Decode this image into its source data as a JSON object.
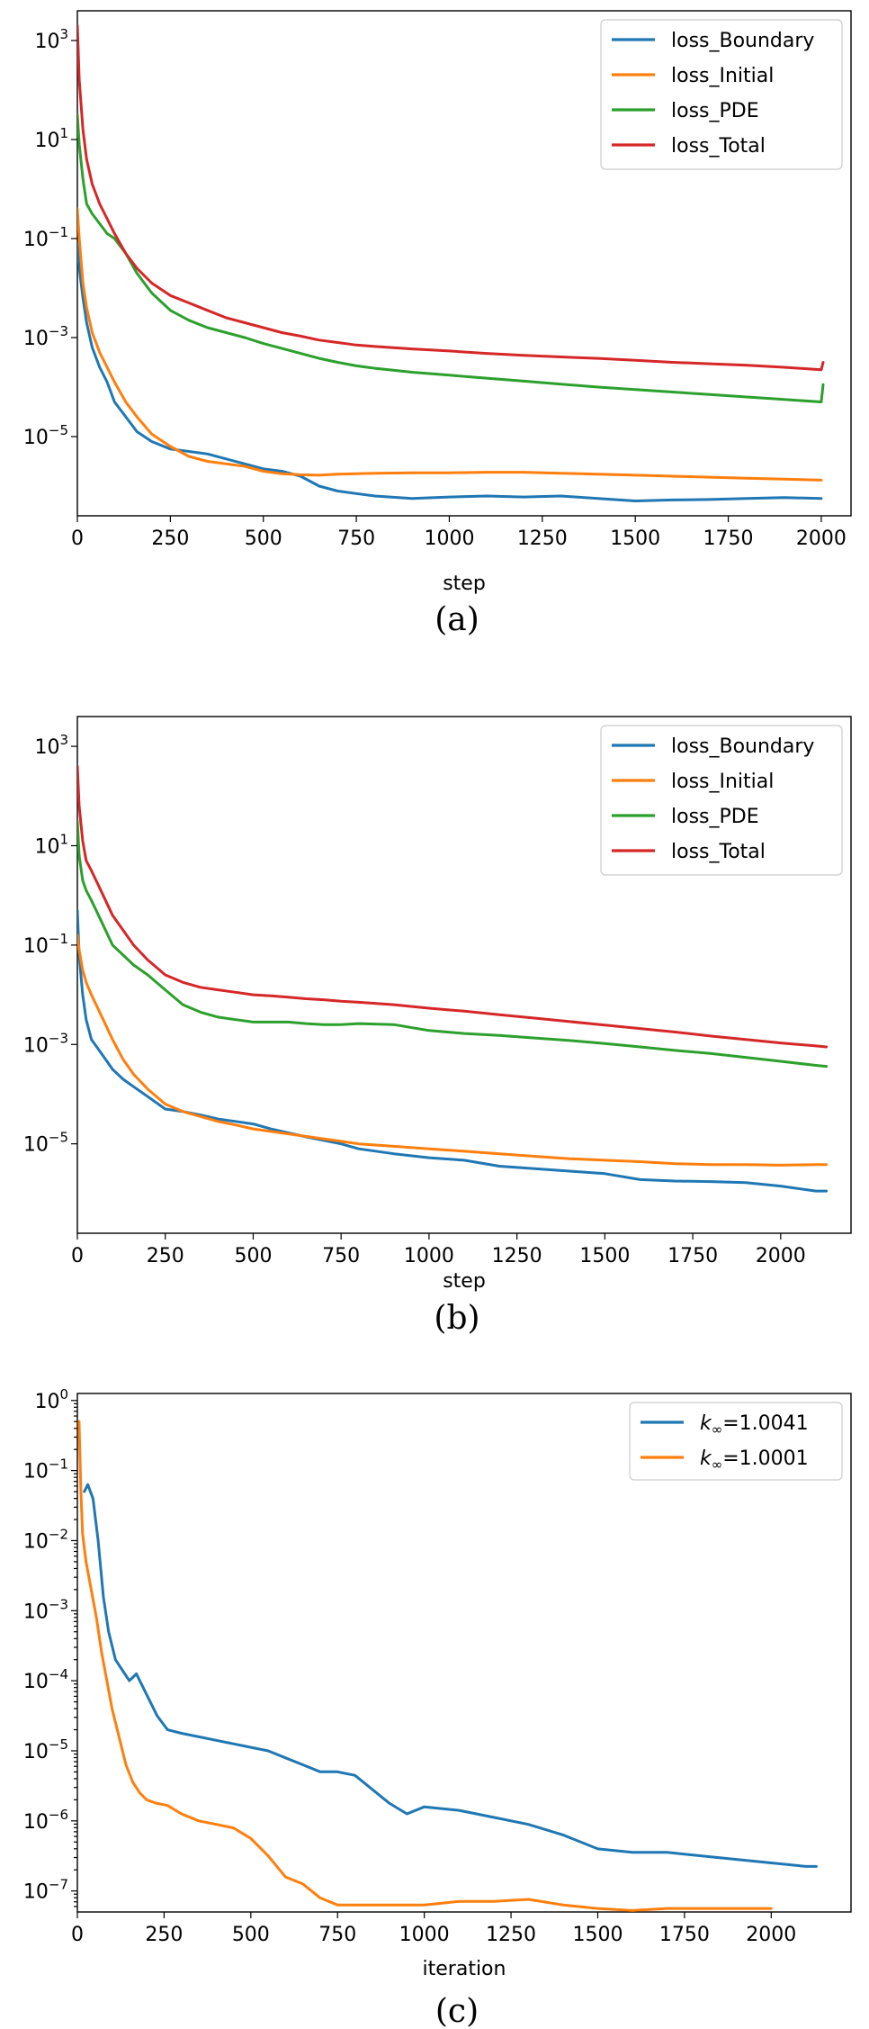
{
  "chart_data": [
    {
      "type": "line",
      "caption": "(a)",
      "xlabel": "step",
      "ylabel": "",
      "yscale": "log",
      "xlim": [
        0,
        2080
      ],
      "ylim_exp": [
        -6.6,
        3.6
      ],
      "xticks": [
        0,
        250,
        500,
        750,
        1000,
        1250,
        1500,
        1750,
        2000
      ],
      "xtick_labels": [
        "0",
        "250",
        "500",
        "750",
        "1000",
        "1250",
        "1500",
        "1750",
        "2000"
      ],
      "yticks_exp": [
        3,
        1,
        -1,
        -3,
        -5
      ],
      "ytick_labels": [
        [
          "10",
          "3"
        ],
        [
          "10",
          "1"
        ],
        [
          "10",
          "−1"
        ],
        [
          "10",
          "−3"
        ],
        [
          "10",
          "−5"
        ]
      ],
      "legend_position": "top-right",
      "series": [
        {
          "name": "loss_Boundary",
          "color": "#1f77b4",
          "x": [
            0,
            5,
            15,
            25,
            40,
            60,
            80,
            100,
            130,
            160,
            200,
            250,
            300,
            350,
            400,
            450,
            500,
            550,
            600,
            650,
            700,
            750,
            800,
            900,
            1000,
            1100,
            1200,
            1300,
            1400,
            1500,
            1600,
            1700,
            1800,
            1900,
            2000
          ],
          "log10": [
            -1.1,
            -1.6,
            -2.2,
            -2.7,
            -3.2,
            -3.6,
            -3.9,
            -4.3,
            -4.6,
            -4.9,
            -5.1,
            -5.25,
            -5.3,
            -5.35,
            -5.45,
            -5.55,
            -5.65,
            -5.7,
            -5.8,
            -6.0,
            -6.1,
            -6.15,
            -6.2,
            -6.25,
            -6.22,
            -6.2,
            -6.22,
            -6.2,
            -6.25,
            -6.3,
            -6.28,
            -6.27,
            -6.25,
            -6.23,
            -6.25
          ]
        },
        {
          "name": "loss_Initial",
          "color": "#ff7f0e",
          "x": [
            0,
            5,
            15,
            25,
            40,
            60,
            80,
            100,
            130,
            160,
            200,
            250,
            300,
            350,
            400,
            450,
            500,
            550,
            600,
            650,
            700,
            750,
            800,
            900,
            1000,
            1100,
            1200,
            1300,
            1400,
            1500,
            1600,
            1700,
            1800,
            1900,
            2000
          ],
          "log10": [
            -0.4,
            -1.0,
            -1.9,
            -2.4,
            -2.9,
            -3.3,
            -3.6,
            -3.9,
            -4.3,
            -4.6,
            -4.95,
            -5.2,
            -5.4,
            -5.5,
            -5.55,
            -5.6,
            -5.7,
            -5.75,
            -5.77,
            -5.78,
            -5.76,
            -5.75,
            -5.74,
            -5.73,
            -5.73,
            -5.72,
            -5.72,
            -5.74,
            -5.76,
            -5.78,
            -5.8,
            -5.82,
            -5.84,
            -5.86,
            -5.88
          ]
        },
        {
          "name": "loss_PDE",
          "color": "#2ca02c",
          "x": [
            0,
            5,
            15,
            25,
            40,
            60,
            80,
            100,
            130,
            160,
            200,
            250,
            300,
            350,
            400,
            450,
            500,
            550,
            600,
            650,
            700,
            750,
            800,
            900,
            1000,
            1100,
            1200,
            1300,
            1400,
            1500,
            1600,
            1700,
            1800,
            1900,
            2000,
            2005
          ],
          "log10": [
            1.5,
            0.9,
            0.2,
            -0.3,
            -0.5,
            -0.7,
            -0.9,
            -1.0,
            -1.3,
            -1.7,
            -2.1,
            -2.45,
            -2.65,
            -2.8,
            -2.9,
            -3.0,
            -3.12,
            -3.22,
            -3.32,
            -3.42,
            -3.5,
            -3.57,
            -3.62,
            -3.7,
            -3.76,
            -3.82,
            -3.88,
            -3.94,
            -4.0,
            -4.05,
            -4.1,
            -4.15,
            -4.2,
            -4.25,
            -4.3,
            -3.95
          ]
        },
        {
          "name": "loss_Total",
          "color": "#d62728",
          "x": [
            0,
            5,
            15,
            25,
            40,
            60,
            80,
            100,
            130,
            160,
            200,
            250,
            300,
            350,
            400,
            450,
            500,
            550,
            600,
            650,
            700,
            750,
            800,
            900,
            1000,
            1100,
            1200,
            1300,
            1400,
            1500,
            1600,
            1700,
            1800,
            1900,
            2000,
            2005
          ],
          "log10": [
            3.3,
            2.2,
            1.2,
            0.6,
            0.1,
            -0.3,
            -0.6,
            -0.9,
            -1.3,
            -1.6,
            -1.9,
            -2.15,
            -2.3,
            -2.45,
            -2.6,
            -2.7,
            -2.8,
            -2.9,
            -2.97,
            -3.05,
            -3.1,
            -3.15,
            -3.18,
            -3.23,
            -3.27,
            -3.32,
            -3.36,
            -3.39,
            -3.42,
            -3.46,
            -3.5,
            -3.53,
            -3.56,
            -3.6,
            -3.65,
            -3.5
          ]
        }
      ]
    },
    {
      "type": "line",
      "caption": "(b)",
      "xlabel": "step",
      "ylabel": "",
      "yscale": "log",
      "xlim": [
        0,
        2200
      ],
      "ylim_exp": [
        -6.8,
        3.6
      ],
      "xticks": [
        0,
        250,
        500,
        750,
        1000,
        1250,
        1500,
        1750,
        2000
      ],
      "xtick_labels": [
        "0",
        "250",
        "500",
        "750",
        "1000",
        "1250",
        "1500",
        "1750",
        "2000"
      ],
      "yticks_exp": [
        3,
        1,
        -1,
        -3,
        -5
      ],
      "ytick_labels": [
        [
          "10",
          "3"
        ],
        [
          "10",
          "1"
        ],
        [
          "10",
          "−1"
        ],
        [
          "10",
          "−3"
        ],
        [
          "10",
          "−5"
        ]
      ],
      "legend_position": "top-right",
      "series": [
        {
          "name": "loss_Boundary",
          "color": "#1f77b4",
          "x": [
            0,
            5,
            15,
            25,
            40,
            60,
            80,
            100,
            130,
            160,
            200,
            250,
            300,
            350,
            400,
            450,
            500,
            550,
            600,
            650,
            700,
            750,
            800,
            900,
            1000,
            1100,
            1200,
            1300,
            1400,
            1500,
            1600,
            1700,
            1800,
            1900,
            2000,
            2100,
            2130
          ],
          "log10": [
            -0.3,
            -1.2,
            -2.0,
            -2.5,
            -2.9,
            -3.1,
            -3.3,
            -3.5,
            -3.7,
            -3.85,
            -4.05,
            -4.3,
            -4.35,
            -4.42,
            -4.5,
            -4.55,
            -4.6,
            -4.7,
            -4.78,
            -4.86,
            -4.93,
            -5.0,
            -5.1,
            -5.2,
            -5.28,
            -5.33,
            -5.45,
            -5.5,
            -5.55,
            -5.6,
            -5.72,
            -5.75,
            -5.76,
            -5.78,
            -5.85,
            -5.95,
            -5.95
          ]
        },
        {
          "name": "loss_Initial",
          "color": "#ff7f0e",
          "x": [
            0,
            5,
            15,
            25,
            40,
            60,
            80,
            100,
            130,
            160,
            200,
            250,
            300,
            350,
            400,
            450,
            500,
            550,
            600,
            650,
            700,
            750,
            800,
            900,
            1000,
            1100,
            1200,
            1300,
            1400,
            1500,
            1600,
            1700,
            1800,
            1900,
            2000,
            2100,
            2130
          ],
          "log10": [
            -0.8,
            -1.1,
            -1.5,
            -1.75,
            -2.0,
            -2.3,
            -2.6,
            -2.9,
            -3.3,
            -3.6,
            -3.9,
            -4.2,
            -4.35,
            -4.45,
            -4.55,
            -4.62,
            -4.7,
            -4.75,
            -4.8,
            -4.85,
            -4.9,
            -4.95,
            -5.0,
            -5.05,
            -5.1,
            -5.15,
            -5.2,
            -5.25,
            -5.3,
            -5.33,
            -5.36,
            -5.4,
            -5.42,
            -5.42,
            -5.43,
            -5.42,
            -5.42
          ]
        },
        {
          "name": "loss_PDE",
          "color": "#2ca02c",
          "x": [
            0,
            5,
            15,
            25,
            40,
            60,
            80,
            100,
            130,
            160,
            200,
            250,
            300,
            350,
            400,
            450,
            500,
            550,
            600,
            650,
            700,
            750,
            800,
            900,
            1000,
            1100,
            1200,
            1300,
            1400,
            1500,
            1600,
            1700,
            1800,
            1900,
            2000,
            2100,
            2130
          ],
          "log10": [
            1.5,
            0.8,
            0.3,
            0.1,
            -0.1,
            -0.4,
            -0.7,
            -1.0,
            -1.2,
            -1.4,
            -1.6,
            -1.9,
            -2.2,
            -2.35,
            -2.45,
            -2.5,
            -2.55,
            -2.55,
            -2.55,
            -2.58,
            -2.6,
            -2.6,
            -2.58,
            -2.6,
            -2.72,
            -2.78,
            -2.82,
            -2.87,
            -2.92,
            -2.98,
            -3.05,
            -3.12,
            -3.18,
            -3.26,
            -3.34,
            -3.42,
            -3.44
          ]
        },
        {
          "name": "loss_Total",
          "color": "#d62728",
          "x": [
            0,
            5,
            15,
            25,
            40,
            60,
            80,
            100,
            130,
            160,
            200,
            250,
            300,
            350,
            400,
            450,
            500,
            550,
            600,
            650,
            700,
            750,
            800,
            900,
            1000,
            1100,
            1200,
            1300,
            1400,
            1500,
            1600,
            1700,
            1800,
            1900,
            2000,
            2100,
            2130
          ],
          "log10": [
            2.6,
            1.8,
            1.1,
            0.7,
            0.5,
            0.2,
            -0.1,
            -0.4,
            -0.7,
            -1.0,
            -1.3,
            -1.6,
            -1.75,
            -1.85,
            -1.9,
            -1.95,
            -2.0,
            -2.02,
            -2.05,
            -2.08,
            -2.1,
            -2.13,
            -2.15,
            -2.2,
            -2.27,
            -2.33,
            -2.4,
            -2.47,
            -2.54,
            -2.61,
            -2.68,
            -2.75,
            -2.83,
            -2.9,
            -2.97,
            -3.03,
            -3.05
          ]
        }
      ]
    },
    {
      "type": "line",
      "caption": "(c)",
      "xlabel": "iteration",
      "ylabel": "",
      "yscale": "log",
      "xlim": [
        0,
        2230
      ],
      "ylim_exp": [
        -7.3,
        0.1
      ],
      "xticks": [
        0,
        250,
        500,
        750,
        1000,
        1250,
        1500,
        1750,
        2000
      ],
      "xtick_labels": [
        "0",
        "250",
        "500",
        "750",
        "1000",
        "1250",
        "1500",
        "1750",
        "2000"
      ],
      "yticks_exp": [
        0,
        -1,
        -2,
        -3,
        -4,
        -5,
        -6,
        -7
      ],
      "ytick_labels": [
        [
          "10",
          "0"
        ],
        [
          "10",
          "−1"
        ],
        [
          "10",
          "−2"
        ],
        [
          "10",
          "−3"
        ],
        [
          "10",
          "−4"
        ],
        [
          "10",
          "−5"
        ],
        [
          "10",
          "−6"
        ],
        [
          "10",
          "−7"
        ]
      ],
      "legend_position": "top-right",
      "series": [
        {
          "name": "k∞=1.0041",
          "legend_main": "k",
          "legend_sub": "∞",
          "legend_rest": "=1.0041",
          "color": "#1f77b4",
          "x": [
            20,
            30,
            45,
            60,
            75,
            90,
            110,
            130,
            150,
            170,
            200,
            230,
            260,
            300,
            350,
            400,
            450,
            500,
            550,
            600,
            650,
            700,
            750,
            800,
            850,
            900,
            950,
            1000,
            1100,
            1200,
            1300,
            1400,
            1500,
            1600,
            1700,
            1800,
            1900,
            2000,
            2100,
            2130
          ],
          "log10": [
            -1.3,
            -1.2,
            -1.4,
            -2.0,
            -2.8,
            -3.3,
            -3.7,
            -3.85,
            -4.0,
            -3.9,
            -4.2,
            -4.5,
            -4.7,
            -4.75,
            -4.8,
            -4.85,
            -4.9,
            -4.95,
            -5.0,
            -5.1,
            -5.2,
            -5.3,
            -5.3,
            -5.35,
            -5.55,
            -5.75,
            -5.9,
            -5.8,
            -5.85,
            -5.95,
            -6.05,
            -6.2,
            -6.4,
            -6.45,
            -6.45,
            -6.5,
            -6.55,
            -6.6,
            -6.65,
            -6.65
          ]
        },
        {
          "name": "k∞=1.0001",
          "legend_main": "k",
          "legend_sub": "∞",
          "legend_rest": "=1.0001",
          "color": "#ff7f0e",
          "x": [
            5,
            10,
            15,
            25,
            40,
            55,
            70,
            85,
            100,
            120,
            140,
            160,
            180,
            200,
            230,
            260,
            300,
            350,
            400,
            450,
            500,
            550,
            600,
            650,
            700,
            750,
            800,
            900,
            1000,
            1100,
            1200,
            1300,
            1400,
            1500,
            1600,
            1700,
            1800,
            1900,
            2000
          ],
          "log10": [
            -0.3,
            -1.3,
            -1.9,
            -2.3,
            -2.7,
            -3.1,
            -3.6,
            -4.0,
            -4.4,
            -4.8,
            -5.2,
            -5.45,
            -5.6,
            -5.7,
            -5.75,
            -5.78,
            -5.9,
            -6.0,
            -6.05,
            -6.1,
            -6.25,
            -6.5,
            -6.8,
            -6.9,
            -7.1,
            -7.2,
            -7.2,
            -7.2,
            -7.2,
            -7.15,
            -7.15,
            -7.12,
            -7.2,
            -7.25,
            -7.28,
            -7.25,
            -7.25,
            -7.25,
            -7.25
          ]
        }
      ]
    }
  ]
}
